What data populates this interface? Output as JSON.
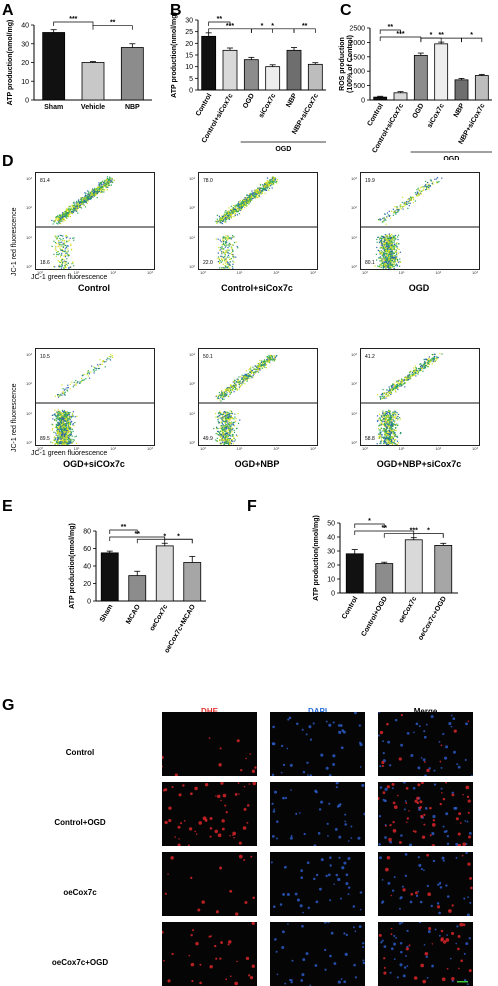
{
  "panels": {
    "A": {
      "letter": "A"
    },
    "B": {
      "letter": "B"
    },
    "C": {
      "letter": "C"
    },
    "D": {
      "letter": "D"
    },
    "E": {
      "letter": "E"
    },
    "F": {
      "letter": "F"
    },
    "G": {
      "letter": "G"
    }
  },
  "chart_data": [
    {
      "panel": "A",
      "type": "bar",
      "ylabel": "ATP production(nmol/mg)",
      "ylim": [
        0,
        40
      ],
      "yticks": [
        0,
        10,
        20,
        30,
        40
      ],
      "categories": [
        "Sham",
        "Vehicle",
        "NBP"
      ],
      "values": [
        36,
        20,
        28
      ],
      "errors": [
        1.5,
        0.5,
        2
      ],
      "colors": [
        "#111111",
        "#c8c8c8",
        "#8c8c8c"
      ],
      "significance": [
        {
          "from": 0,
          "to": 1,
          "label": "***"
        },
        {
          "from": 1,
          "to": 2,
          "label": "**"
        }
      ]
    },
    {
      "panel": "B",
      "type": "bar",
      "ylabel": "ATP production(nmol/mg)",
      "ylim": [
        0,
        30
      ],
      "yticks": [
        0,
        5,
        10,
        15,
        20,
        25,
        30
      ],
      "categories": [
        "Control",
        "Control+siCox7c",
        "OGD",
        "siCox7c",
        "NBP",
        "NBP+siCox7c"
      ],
      "values": [
        23,
        17,
        13,
        10,
        17,
        11
      ],
      "errors": [
        1.5,
        1,
        1,
        0.8,
        1.2,
        0.7
      ],
      "colors": [
        "#111111",
        "#d9d9d9",
        "#8c8c8c",
        "#ededed",
        "#6e6e6e",
        "#bdbdbd"
      ],
      "group_label": "OGD",
      "significance": [
        {
          "from": 0,
          "to": 1,
          "label": "**"
        },
        {
          "from": 0,
          "to": 2,
          "label": "***"
        },
        {
          "from": 2,
          "to": 3,
          "label": "*"
        },
        {
          "from": 2,
          "to": 4,
          "label": "*"
        },
        {
          "from": 4,
          "to": 5,
          "label": "**"
        }
      ]
    },
    {
      "panel": "C",
      "type": "bar",
      "ylabel": "ROS production\n(100% of Control)",
      "ylim": [
        0,
        2500
      ],
      "yticks": [
        0,
        500,
        1000,
        1500,
        2000,
        2500
      ],
      "categories": [
        "Control",
        "Control+siCox7c",
        "OGD",
        "siCox7c",
        "NBP",
        "NBP+siCox7c"
      ],
      "values": [
        100,
        250,
        1550,
        1950,
        700,
        850
      ],
      "errors": [
        30,
        40,
        80,
        60,
        50,
        40
      ],
      "colors": [
        "#111111",
        "#d9d9d9",
        "#8c8c8c",
        "#ededed",
        "#6e6e6e",
        "#bdbdbd"
      ],
      "group_label": "OGD",
      "significance": [
        {
          "from": 0,
          "to": 1,
          "label": "**"
        },
        {
          "from": 0,
          "to": 2,
          "label": "***"
        },
        {
          "from": 2,
          "to": 3,
          "label": "*"
        },
        {
          "from": 2,
          "to": 4,
          "label": "**"
        },
        {
          "from": 4,
          "to": 5,
          "label": "*"
        }
      ]
    },
    {
      "panel": "E",
      "type": "bar",
      "ylabel": "ATP production(nmol/mg)",
      "ylim": [
        0,
        80
      ],
      "yticks": [
        0,
        20,
        40,
        60,
        80
      ],
      "categories": [
        "Sham",
        "MCAO",
        "oeCox7c",
        "oeCox7c+MCAO"
      ],
      "values": [
        55,
        29,
        63,
        44
      ],
      "errors": [
        2,
        5,
        3,
        7
      ],
      "colors": [
        "#111111",
        "#8c8c8c",
        "#d9d9d9",
        "#a6a6a6"
      ],
      "significance": [
        {
          "from": 0,
          "to": 1,
          "label": "**"
        },
        {
          "from": 0,
          "to": 2,
          "label": "**"
        },
        {
          "from": 1,
          "to": 3,
          "label": "*"
        },
        {
          "from": 2,
          "to": 3,
          "label": "*"
        }
      ]
    },
    {
      "panel": "F",
      "type": "bar",
      "ylabel": "ATP production(nmol/mg)",
      "ylim": [
        0,
        50
      ],
      "yticks": [
        0,
        10,
        20,
        30,
        40,
        50
      ],
      "categories": [
        "Control",
        "Control+OGD",
        "oeCox7c",
        "oeCox7c+OGD"
      ],
      "values": [
        28,
        21,
        38,
        34
      ],
      "errors": [
        3,
        1,
        1.5,
        1.5
      ],
      "colors": [
        "#111111",
        "#8c8c8c",
        "#d9d9d9",
        "#a6a6a6"
      ],
      "significance": [
        {
          "from": 0,
          "to": 1,
          "label": "*"
        },
        {
          "from": 0,
          "to": 2,
          "label": "**"
        },
        {
          "from": 1,
          "to": 3,
          "label": "***"
        },
        {
          "from": 2,
          "to": 3,
          "label": "*"
        }
      ]
    }
  ],
  "flow": {
    "xlabel": "JC-1 green fluorescence",
    "ylabel": "JC-1 red fluorescence",
    "tick_labels": [
      "10⁰",
      "10¹",
      "10²",
      "10³"
    ],
    "plots": [
      {
        "caption": "Control",
        "upper": "81.4",
        "lower": "18.6",
        "high_frac": 0.81
      },
      {
        "caption": "Control+siCox7c",
        "upper": "78.0",
        "lower": "22.0",
        "high_frac": 0.78
      },
      {
        "caption": "OGD",
        "upper": "19.9",
        "lower": "80.1",
        "high_frac": 0.2
      },
      {
        "caption": "OGD+siCOx7c",
        "upper": "10.5",
        "lower": "89.5",
        "high_frac": 0.1
      },
      {
        "caption": "OGD+NBP",
        "upper": "50.1",
        "lower": "49.9",
        "high_frac": 0.5
      },
      {
        "caption": "OGD+NBP+siCox7c",
        "upper": "41.2",
        "lower": "58.8",
        "high_frac": 0.41
      }
    ]
  },
  "micro": {
    "columns": [
      {
        "label": "DHE",
        "color": "#e0312d"
      },
      {
        "label": "DAPI",
        "color": "#2a6fd8"
      },
      {
        "label": "Merge",
        "color": "#000000"
      }
    ],
    "rows": [
      {
        "label": "Control",
        "red_density": 0.2
      },
      {
        "label": "Control+OGD",
        "red_density": 0.9
      },
      {
        "label": "oeCox7c",
        "red_density": 0.25
      },
      {
        "label": "oeCox7c+OGD",
        "red_density": 0.5
      }
    ]
  }
}
